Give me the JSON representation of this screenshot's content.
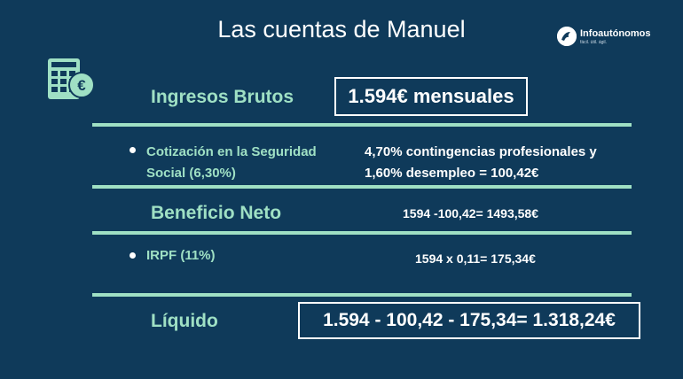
{
  "title": "Las cuentas de Manuel",
  "brand": {
    "name_prefix": "Info",
    "name_suffix": "autónomos",
    "tagline": "fácil. útil. ágil."
  },
  "icons": {
    "calculator": "calculator-euro-icon",
    "logo": "infoautonomos-logo-icon"
  },
  "colors": {
    "background": "#0f3a5a",
    "accent": "#9fe0c4",
    "text": "#ffffff"
  },
  "rows": {
    "ingresos": {
      "label": "Ingresos Brutos",
      "value": "1.594€ mensuales"
    },
    "cotizacion": {
      "label_line1": "Cotización en la Seguridad",
      "label_line2": "Social (6,30%)",
      "value_line1": "4,70% contingencias profesionales y",
      "value_line2": "1,60%  desempleo = 100,42€"
    },
    "beneficio": {
      "label": "Beneficio Neto",
      "value": "1594 -100,42= 1493,58€"
    },
    "irpf": {
      "label": "IRPF (11%)",
      "value": "1594 x 0,11= 175,34€"
    },
    "liquido": {
      "label": "Líquido",
      "value": "1.594 - 100,42 - 175,34= 1.318,24€"
    }
  }
}
